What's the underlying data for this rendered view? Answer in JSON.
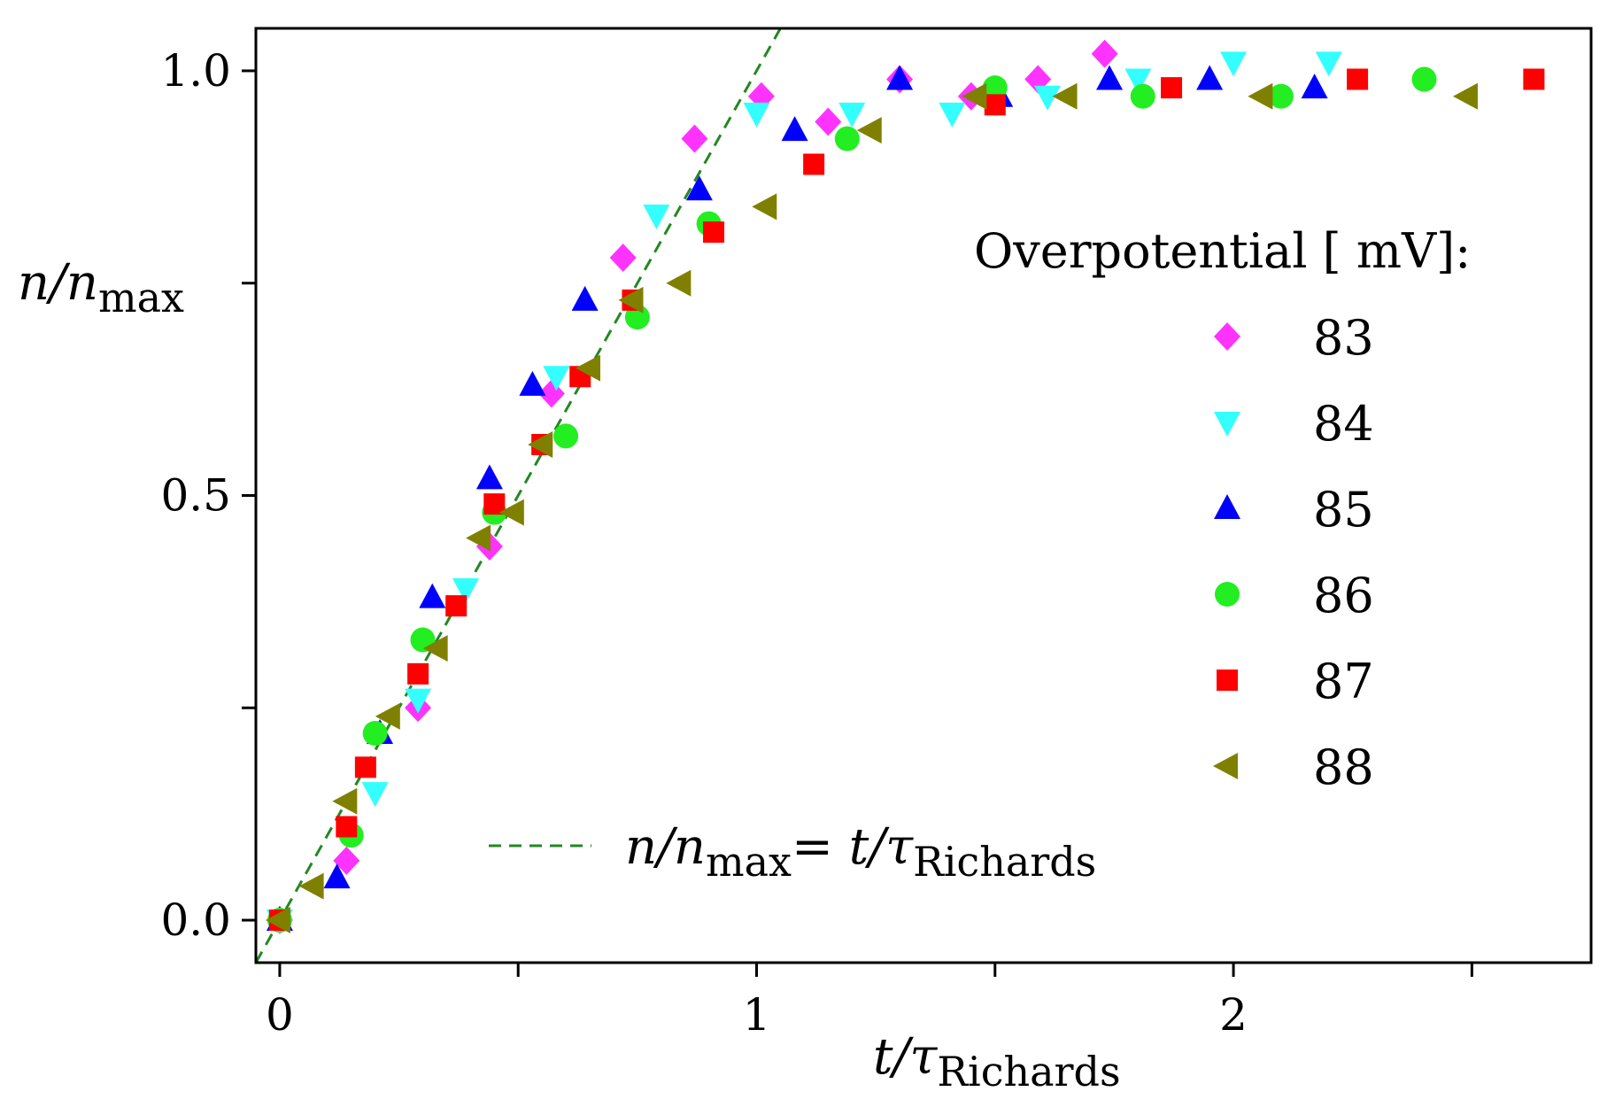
{
  "chart_data": {
    "type": "scatter",
    "title": "",
    "xlabel": {
      "var": "t/",
      "greek": "τ",
      "sub": "Richards"
    },
    "ylabel": {
      "var": "n/n",
      "sub": "max"
    },
    "xlim": [
      -0.05,
      2.75
    ],
    "ylim": [
      -0.05,
      1.05
    ],
    "x_ticks": [
      {
        "value": 0,
        "label": "0"
      },
      {
        "value": 0.5,
        "label": ""
      },
      {
        "value": 1,
        "label": "1"
      },
      {
        "value": 1.5,
        "label": ""
      },
      {
        "value": 2,
        "label": "2"
      },
      {
        "value": 2.5,
        "label": ""
      }
    ],
    "y_ticks": [
      {
        "value": 0,
        "label": "0.0"
      },
      {
        "value": 0.25,
        "label": ""
      },
      {
        "value": 0.5,
        "label": "0.5"
      },
      {
        "value": 0.75,
        "label": ""
      },
      {
        "value": 1.0,
        "label": "1.0"
      }
    ],
    "grid": false,
    "legend_position": "right",
    "legend_title": "Overpotential [ mV]:",
    "series": [
      {
        "name": "83",
        "marker": "diamond",
        "color": "#ff33ff",
        "x": [
          0,
          0.14,
          0.29,
          0.44,
          0.57,
          0.72,
          0.87,
          1.01,
          1.15,
          1.3,
          1.45,
          1.59,
          1.73
        ],
        "y": [
          0,
          0.07,
          0.25,
          0.44,
          0.62,
          0.78,
          0.92,
          0.97,
          0.94,
          0.99,
          0.97,
          0.99,
          1.02
        ]
      },
      {
        "name": "84",
        "marker": "triangle-down",
        "color": "#33ffff",
        "x": [
          0,
          0.2,
          0.29,
          0.39,
          0.58,
          0.79,
          1.0,
          1.2,
          1.41,
          1.61,
          1.8,
          2.0,
          2.2
        ],
        "y": [
          0,
          0.15,
          0.26,
          0.39,
          0.64,
          0.83,
          0.95,
          0.95,
          0.95,
          0.97,
          0.99,
          1.01,
          1.01
        ]
      },
      {
        "name": "85",
        "marker": "triangle-up",
        "color": "#0000ff",
        "x": [
          0,
          0.12,
          0.21,
          0.32,
          0.44,
          0.53,
          0.64,
          0.88,
          1.08,
          1.3,
          1.51,
          1.74,
          1.95,
          2.17
        ],
        "y": [
          0,
          0.05,
          0.22,
          0.38,
          0.52,
          0.63,
          0.73,
          0.86,
          0.93,
          0.99,
          0.97,
          0.99,
          0.99,
          0.98
        ]
      },
      {
        "name": "86",
        "marker": "circle",
        "color": "#22ee22",
        "x": [
          0,
          0.15,
          0.2,
          0.3,
          0.45,
          0.6,
          0.75,
          0.9,
          1.19,
          1.5,
          1.81,
          2.1,
          2.4
        ],
        "y": [
          0,
          0.1,
          0.22,
          0.33,
          0.48,
          0.57,
          0.71,
          0.82,
          0.92,
          0.98,
          0.97,
          0.97,
          0.99
        ]
      },
      {
        "name": "87",
        "marker": "square",
        "color": "#ff0000",
        "x": [
          0,
          0.14,
          0.18,
          0.29,
          0.37,
          0.45,
          0.55,
          0.63,
          0.74,
          0.91,
          1.12,
          1.5,
          1.87,
          2.26,
          2.63
        ],
        "y": [
          0,
          0.11,
          0.18,
          0.29,
          0.37,
          0.49,
          0.56,
          0.64,
          0.73,
          0.81,
          0.89,
          0.96,
          0.98,
          0.99,
          0.99
        ]
      },
      {
        "name": "88",
        "marker": "triangle-left",
        "color": "#808000",
        "x": [
          0,
          0.07,
          0.14,
          0.23,
          0.33,
          0.42,
          0.49,
          0.55,
          0.65,
          0.74,
          0.84,
          1.02,
          1.24,
          1.46,
          1.65,
          2.06,
          2.49
        ],
        "y": [
          0,
          0.04,
          0.14,
          0.24,
          0.32,
          0.45,
          0.48,
          0.56,
          0.65,
          0.73,
          0.75,
          0.84,
          0.93,
          0.97,
          0.97,
          0.97,
          0.97
        ]
      }
    ],
    "reference_line": {
      "label_prefix": "n/n",
      "label_prefix_sub": "max",
      "label_eq": "= t/",
      "label_greek": "τ",
      "label_sub": "Richards",
      "color": "#228822",
      "style": "dashed",
      "slope": 1,
      "intercept": 0
    }
  }
}
